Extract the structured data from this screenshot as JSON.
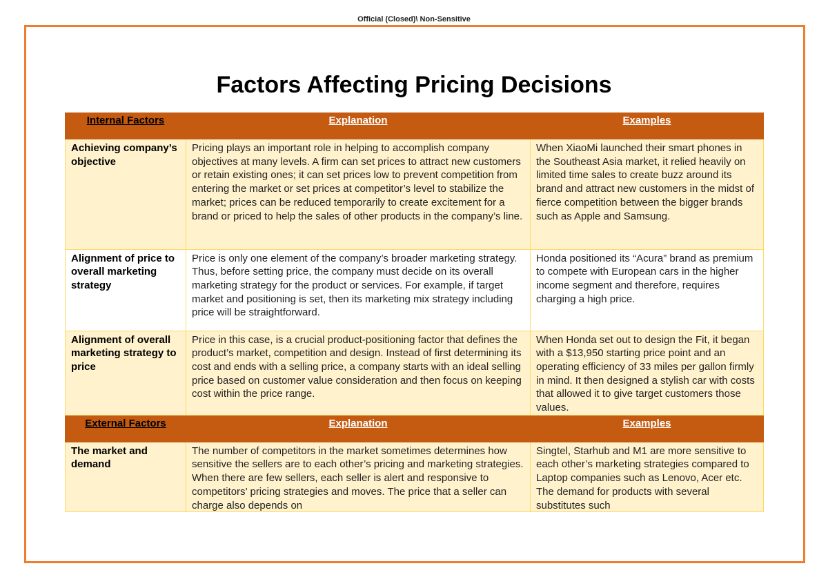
{
  "header": {
    "classification": "Official (Closed)\\ Non-Sensitive"
  },
  "title": "Factors Affecting Pricing Decisions",
  "table": {
    "header1": [
      "Internal Factors",
      "Explanation",
      "Examples"
    ],
    "rows1": [
      [
        "Achieving company’s objective",
        "Pricing plays an important role in helping to accomplish company objectives at many levels. A firm can set prices to attract new customers or retain existing ones; it can set prices low to prevent competition from entering the market or set prices at competitor’s level to stabilize the market; prices can be reduced temporarily to create excitement for a brand or priced to help the sales of other products in the company’s line.",
        "When XiaoMi launched their smart phones in the Southeast Asia market, it relied heavily on limited time sales to create buzz around its brand and attract new customers in the midst of fierce competition between the bigger brands such as Apple and Samsung."
      ],
      [
        "Alignment of price to overall marketing strategy",
        "Price is only one element of the company’s broader marketing strategy. Thus, before setting price, the company must decide on its overall marketing strategy for the product or services. For example, if target market and positioning is set, then its marketing mix strategy including price will be straightforward.",
        "Honda positioned its “Acura” brand as premium to compete with European cars in the higher income segment and therefore, requires charging a high price."
      ],
      [
        "Alignment of overall marketing strategy to price",
        "Price in this case, is a crucial product-positioning factor that defines the product’s market, competition and design. Instead of first determining its cost and ends with a selling price, a company starts with an ideal selling price based on customer value consideration and then focus on keeping cost within the price range.",
        "When Honda set out to design the Fit, it began with a $13,950 starting price point and an operating efficiency of 33 miles per gallon firmly in mind. It then designed a stylish car with costs that allowed it to give target customers those values."
      ]
    ],
    "header2": [
      "External Factors",
      "Explanation",
      "Examples"
    ],
    "rows2": [
      [
        "The market and demand",
        "The number of competitors in the market sometimes determines how sensitive the sellers are to each other’s pricing and marketing strategies. When there are few sellers, each seller is alert and responsive to competitors’ pricing strategies and moves. The price that a seller can charge also depends on",
        "Singtel, Starhub and M1 are more sensitive to each other’s marketing strategies compared to Laptop companies such as Lenovo, Acer etc. The demand for products with several substitutes such"
      ]
    ]
  }
}
